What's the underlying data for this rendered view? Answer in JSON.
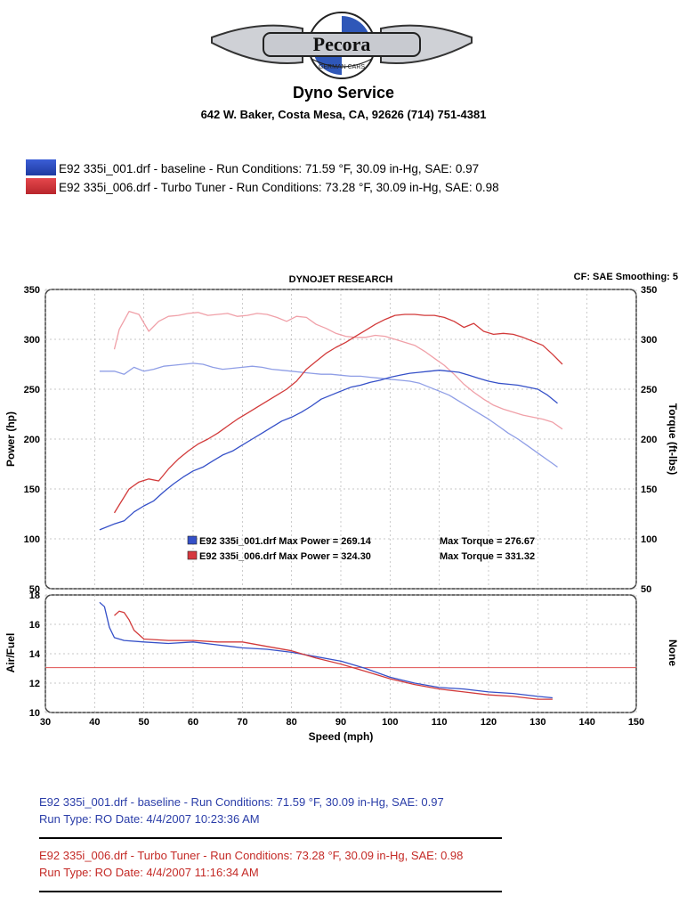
{
  "header": {
    "logo_text": "Pecora",
    "logo_subtext": "GERMAN CARS",
    "company": "Dyno Service",
    "address": "642 W. Baker, Costa Mesa, CA, 92626  (714) 751-4381"
  },
  "legend_top": [
    {
      "text": "E92 335i_001.drf - baseline  -  Run Conditions: 71.59 °F, 30.09 in-Hg, SAE: 0.97",
      "color": "#2f52c2"
    },
    {
      "text": "E92 335i_006.drf - Turbo Tuner  -  Run Conditions: 73.28 °F, 30.09 in-Hg, SAE: 0.98",
      "color": "#d6393f"
    }
  ],
  "chart_header": {
    "title": "DYNOJET RESEARCH",
    "cf_label": "CF: SAE  Smoothing: 5"
  },
  "summary": [
    {
      "text": "E92 335i_001.drf Max Power = 269.14",
      "torque": "Max Torque = 276.67",
      "color": "#2f52c2"
    },
    {
      "text": "E92 335i_006.drf Max Power = 324.30",
      "torque": "Max Torque = 331.32",
      "color": "#d6393f"
    }
  ],
  "footer": {
    "run1_line1": "E92 335i_001.drf - baseline  -  Run Conditions: 71.59 °F, 30.09 in-Hg, SAE: 0.97",
    "run1_line2": "Run Type: RO  Date: 4/4/2007 10:23:36 AM",
    "run2_line1": "E92 335i_006.drf - Turbo Tuner  -  Run Conditions: 73.28 °F, 30.09 in-Hg, SAE: 0.98",
    "run2_line2": "Run Type: RO  Date: 4/4/2007 11:16:34 AM"
  },
  "colors": {
    "baseline_power": "#3550c8",
    "baseline_torque": "#8f9ee6",
    "tuned_power": "#d23a3a",
    "tuned_torque": "#f0a0a8",
    "reference_line": "#e05050"
  },
  "chart_data": [
    {
      "type": "line",
      "title": "DYNOJET RESEARCH",
      "xlabel": "Speed (mph)",
      "ylabel": "Power (hp)",
      "y2label": "Torque (ft-lbs)",
      "xlim": [
        30,
        150
      ],
      "ylim": [
        50,
        350
      ],
      "y2lim": [
        50,
        350
      ],
      "x_ticks": [
        30,
        40,
        50,
        60,
        70,
        80,
        90,
        100,
        110,
        120,
        130,
        140,
        150
      ],
      "y_ticks": [
        50,
        100,
        150,
        200,
        250,
        300,
        350
      ],
      "grid": true,
      "series": [
        {
          "name": "E92 335i_001.drf",
          "measure": "power",
          "color": "#3550c8",
          "x": [
            41,
            44,
            46,
            48,
            50,
            52,
            54,
            56,
            58,
            60,
            62,
            64,
            66,
            68,
            70,
            72,
            74,
            76,
            78,
            80,
            82,
            84,
            86,
            88,
            90,
            92,
            94,
            96,
            98,
            100,
            102,
            104,
            106,
            108,
            110,
            112,
            114,
            116,
            118,
            120,
            122,
            124,
            126,
            128,
            130,
            132,
            134
          ],
          "y": [
            109,
            115,
            118,
            127,
            133,
            138,
            147,
            155,
            162,
            168,
            172,
            178,
            184,
            188,
            194,
            200,
            206,
            212,
            218,
            222,
            227,
            233,
            240,
            244,
            248,
            252,
            254,
            257,
            259,
            262,
            264,
            266,
            267,
            268,
            269,
            268,
            267,
            264,
            261,
            258,
            256,
            255,
            254,
            252,
            250,
            244,
            236
          ]
        },
        {
          "name": "E92 335i_006.drf",
          "measure": "power",
          "color": "#d23a3a",
          "x": [
            44,
            45,
            47,
            49,
            51,
            53,
            55,
            57,
            59,
            61,
            63,
            65,
            67,
            69,
            71,
            73,
            75,
            77,
            79,
            81,
            83,
            85,
            87,
            89,
            91,
            93,
            95,
            97,
            99,
            101,
            103,
            105,
            107,
            109,
            111,
            113,
            115,
            117,
            119,
            121,
            123,
            125,
            127,
            129,
            131,
            133,
            135
          ],
          "y": [
            126,
            134,
            150,
            157,
            160,
            158,
            170,
            180,
            188,
            195,
            200,
            206,
            213,
            220,
            226,
            232,
            238,
            244,
            250,
            258,
            270,
            278,
            286,
            292,
            297,
            303,
            309,
            315,
            320,
            324,
            325,
            325,
            324,
            324,
            322,
            318,
            312,
            316,
            308,
            305,
            306,
            305,
            302,
            298,
            294,
            285,
            275
          ]
        },
        {
          "name": "E92 335i_001.drf",
          "measure": "torque",
          "color": "#8f9ee6",
          "x": [
            41,
            44,
            46,
            48,
            50,
            52,
            54,
            56,
            58,
            60,
            62,
            64,
            66,
            68,
            70,
            72,
            74,
            76,
            78,
            80,
            82,
            84,
            86,
            88,
            90,
            92,
            94,
            96,
            98,
            100,
            102,
            104,
            106,
            108,
            110,
            112,
            114,
            116,
            118,
            120,
            122,
            124,
            126,
            128,
            130,
            132,
            134
          ],
          "y": [
            268,
            268,
            265,
            272,
            268,
            270,
            273,
            274,
            275,
            276,
            275,
            272,
            270,
            271,
            272,
            273,
            272,
            270,
            269,
            268,
            267,
            266,
            265,
            265,
            264,
            263,
            263,
            262,
            261,
            260,
            259,
            258,
            256,
            252,
            248,
            244,
            238,
            232,
            226,
            220,
            213,
            206,
            200,
            193,
            186,
            179,
            172
          ]
        },
        {
          "name": "E92 335i_006.drf",
          "measure": "torque",
          "color": "#f0a0a8",
          "x": [
            44,
            45,
            47,
            49,
            51,
            53,
            55,
            57,
            59,
            61,
            63,
            65,
            67,
            69,
            71,
            73,
            75,
            77,
            79,
            81,
            83,
            85,
            87,
            89,
            91,
            93,
            95,
            97,
            99,
            101,
            103,
            105,
            107,
            109,
            111,
            113,
            115,
            117,
            119,
            121,
            123,
            125,
            127,
            129,
            131,
            133,
            135
          ],
          "y": [
            290,
            310,
            328,
            325,
            308,
            318,
            323,
            324,
            326,
            327,
            324,
            325,
            326,
            323,
            324,
            326,
            325,
            322,
            318,
            323,
            322,
            315,
            311,
            306,
            303,
            302,
            302,
            304,
            303,
            300,
            297,
            294,
            288,
            281,
            274,
            265,
            255,
            247,
            240,
            234,
            230,
            227,
            224,
            222,
            220,
            217,
            210
          ]
        }
      ],
      "annotations": [
        "E92 335i_001.drf Max Power = 269.14",
        "Max Torque = 276.67",
        "E92 335i_006.drf Max Power = 324.30",
        "Max Torque = 331.32"
      ]
    },
    {
      "type": "line",
      "xlabel": "Speed (mph)",
      "ylabel": "Air/Fuel",
      "y2label": "None",
      "xlim": [
        30,
        150
      ],
      "ylim": [
        10,
        18
      ],
      "x_ticks": [
        30,
        40,
        50,
        60,
        70,
        80,
        90,
        100,
        110,
        120,
        130,
        140,
        150
      ],
      "y_ticks": [
        10,
        12,
        14,
        16,
        18
      ],
      "grid": true,
      "reference_line": 13.05,
      "series": [
        {
          "name": "E92 335i_001.drf",
          "color": "#3550c8",
          "x": [
            41,
            42,
            43,
            44,
            46,
            50,
            55,
            60,
            65,
            70,
            75,
            80,
            85,
            90,
            95,
            100,
            105,
            110,
            115,
            120,
            125,
            130,
            133
          ],
          "y": [
            17.5,
            17.2,
            15.8,
            15.1,
            14.9,
            14.8,
            14.7,
            14.8,
            14.6,
            14.4,
            14.3,
            14.1,
            13.8,
            13.5,
            13.0,
            12.4,
            12.0,
            11.7,
            11.6,
            11.4,
            11.3,
            11.1,
            11.0
          ]
        },
        {
          "name": "E92 335i_006.drf",
          "color": "#d23a3a",
          "x": [
            44,
            45,
            46,
            47,
            48,
            50,
            55,
            60,
            65,
            70,
            75,
            80,
            85,
            90,
            95,
            100,
            105,
            110,
            115,
            120,
            125,
            130,
            133
          ],
          "y": [
            16.6,
            16.9,
            16.8,
            16.3,
            15.6,
            15.0,
            14.9,
            14.9,
            14.8,
            14.8,
            14.5,
            14.2,
            13.7,
            13.3,
            12.8,
            12.3,
            11.9,
            11.6,
            11.4,
            11.2,
            11.1,
            10.9,
            10.9
          ]
        }
      ]
    }
  ]
}
